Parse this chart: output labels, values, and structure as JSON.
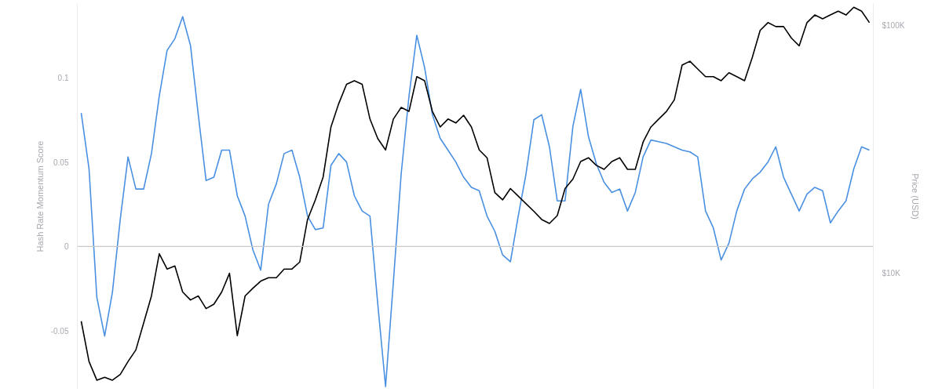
{
  "chart_data": {
    "type": "line",
    "ylabel": "Hash Rate Momentum Score",
    "y2label": "Price (USD)",
    "categories": [
      null,
      null,
      null,
      null,
      null,
      null,
      null,
      null,
      null,
      null,
      null,
      null,
      null,
      null,
      null,
      null,
      null,
      null,
      null,
      null,
      null,
      null,
      null,
      null,
      null,
      null,
      null,
      null,
      null,
      null,
      null,
      null,
      null,
      null,
      null,
      null,
      null,
      null,
      null,
      null,
      null,
      null,
      null,
      null,
      null,
      null,
      null,
      null,
      null,
      null,
      null,
      null,
      null,
      null,
      null,
      null,
      null,
      null,
      null,
      null,
      null,
      null,
      null,
      null,
      null,
      null,
      null,
      null,
      null,
      null,
      null,
      null,
      null,
      null,
      null,
      null,
      null,
      null,
      null,
      null,
      null,
      null,
      null,
      null,
      null,
      null,
      null,
      null,
      null,
      null,
      null,
      null,
      null,
      null,
      null,
      null,
      null,
      null,
      null,
      null,
      null,
      null
    ],
    "series": [
      {
        "color": "#4a90e2",
        "values": [
          0.079,
          0.046,
          -0.03,
          -0.053,
          -0.027,
          0.016,
          0.053,
          0.034,
          0.034,
          0.055,
          0.089,
          0.116,
          0.123,
          0.136,
          0.119,
          0.078,
          0.039,
          0.041,
          0.057,
          0.057,
          0.03,
          0.018,
          -0.002,
          -0.014,
          0.025,
          0.037,
          0.055,
          0.057,
          0.041,
          0.018,
          0.01,
          0.011,
          0.048,
          0.055,
          0.05,
          0.03,
          0.021,
          0.018,
          -0.034,
          -0.083,
          -0.021,
          0.043,
          0.089,
          0.125,
          0.106,
          0.078,
          0.064,
          0.057,
          0.05,
          0.041,
          0.035,
          0.033,
          0.018,
          0.009,
          -0.005,
          -0.009,
          0.018,
          0.043,
          0.075,
          0.078,
          0.059,
          0.027,
          0.027,
          0.071,
          0.093,
          0.065,
          0.049,
          0.038,
          0.032,
          0.034,
          0.021,
          0.032,
          0.053,
          0.063,
          0.062,
          0.061,
          0.059,
          0.057,
          0.056,
          0.053,
          0.021,
          0.011,
          -0.008,
          0.002,
          0.021,
          0.034,
          0.04,
          0.044,
          0.05,
          0.059,
          0.041,
          0.031,
          0.021,
          0.031,
          0.035,
          0.033,
          0.014,
          0.021,
          0.027,
          0.046,
          0.059,
          0.057
        ]
      },
      {
        "color": "#000000",
        "axis": "y2",
        "values": [
          6400,
          4400,
          3700,
          3800,
          3700,
          3900,
          4400,
          4900,
          6300,
          8100,
          12000,
          10400,
          10700,
          8400,
          7800,
          8100,
          7200,
          7500,
          8400,
          10000,
          5600,
          8100,
          8700,
          9300,
          9600,
          9600,
          10400,
          10400,
          11100,
          16500,
          19800,
          24500,
          39000,
          48500,
          58000,
          60000,
          58000,
          42000,
          35000,
          31500,
          42000,
          46800,
          45100,
          62300,
          60000,
          45100,
          39000,
          42000,
          40500,
          43500,
          39000,
          31500,
          29300,
          21200,
          19800,
          22000,
          20500,
          19100,
          17800,
          16500,
          15900,
          17100,
          22000,
          24000,
          28300,
          29300,
          27300,
          26300,
          28300,
          29300,
          26300,
          26300,
          33900,
          39000,
          42000,
          45100,
          50200,
          69400,
          71900,
          66900,
          62300,
          62300,
          60000,
          64600,
          62300,
          60000,
          74600,
          95800,
          103000,
          99300,
          99300,
          89200,
          83000,
          103000,
          110600,
          106700,
          110600,
          114600,
          110600,
          118800,
          114600,
          103000
        ]
      }
    ],
    "ylim": [
      -0.0845,
      0.1438
    ],
    "yticks": [
      -0.05,
      0,
      0.05,
      0.1
    ],
    "y2lim": [
      3400,
      123000
    ],
    "y2ticks": [
      {
        "value": 10000,
        "label": "$10K"
      },
      {
        "value": 100000,
        "label": "$100K"
      }
    ],
    "log": "y2",
    "tick_labels": "y",
    "ref_lines": [
      {
        "axis": "y",
        "value": 0,
        "color": "#c8c8c8"
      }
    ]
  }
}
